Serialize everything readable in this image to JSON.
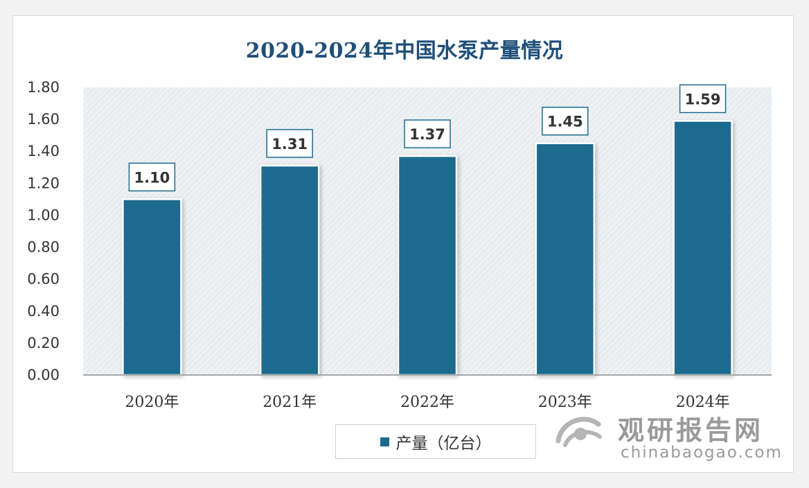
{
  "chart_data": {
    "type": "bar",
    "title": "2020-2024年中国水泵产量情况",
    "categories": [
      "2020年",
      "2021年",
      "2022年",
      "2023年",
      "2024年"
    ],
    "series": [
      {
        "name": "产量（亿台）",
        "values": [
          1.1,
          1.31,
          1.37,
          1.45,
          1.59
        ]
      }
    ],
    "data_labels": [
      "1.10",
      "1.31",
      "1.37",
      "1.45",
      "1.59"
    ],
    "ylim": [
      0,
      1.8
    ],
    "yticks": [
      "0.00",
      "0.20",
      "0.40",
      "0.60",
      "0.80",
      "1.00",
      "1.20",
      "1.40",
      "1.60",
      "1.80"
    ],
    "xlabel": "",
    "ylabel": "",
    "legend_position": "bottom",
    "grid": false,
    "colors": {
      "bar": "#1b6a8e",
      "title": "#1f4e79",
      "plot_bg": "#e9edf0"
    }
  },
  "watermark": {
    "name": "观研报告网",
    "url": "chinabaogao.com"
  }
}
